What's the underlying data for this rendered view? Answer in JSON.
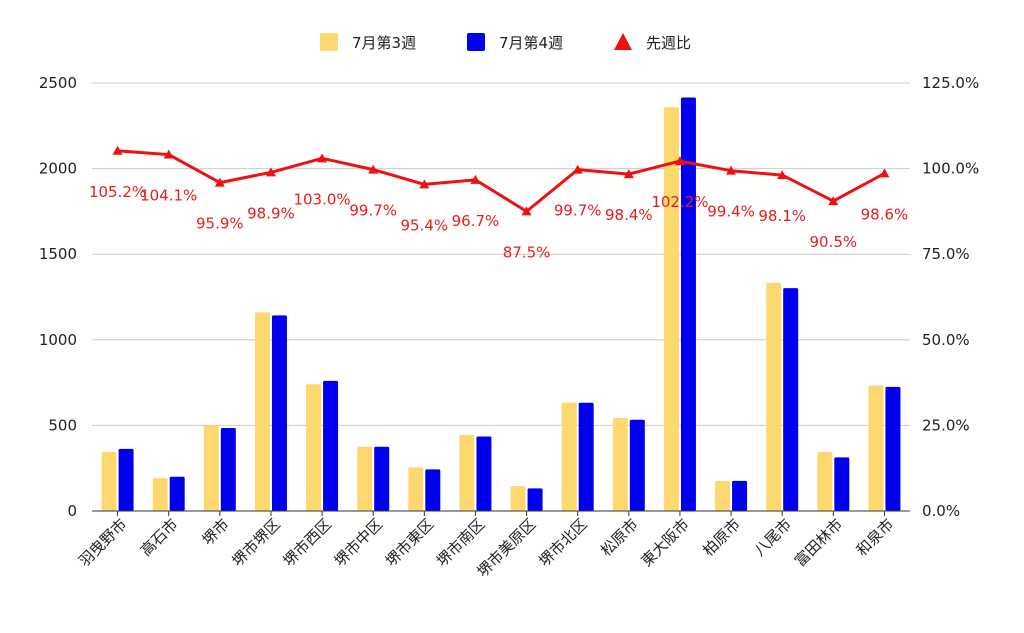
{
  "chart_data": {
    "type": "bar",
    "categories": [
      "羽曳野市",
      "高石市",
      "堺市",
      "堺市堺区",
      "堺市西区",
      "堺市中区",
      "堺市東区",
      "堺市南区",
      "堺市美原区",
      "堺市北区",
      "松原市",
      "東大阪市",
      "柏原市",
      "八尾市",
      "富田林市",
      "和泉市"
    ],
    "series": [
      {
        "name": "7月第3週",
        "type": "bar",
        "axis": "left",
        "color": "#fdd86e",
        "values": [
          345,
          192,
          500,
          1160,
          740,
          375,
          255,
          445,
          145,
          632,
          543,
          2358,
          175,
          1333,
          345,
          733
        ]
      },
      {
        "name": "7月第4週",
        "type": "bar",
        "axis": "left",
        "color": "#0000ee",
        "values": [
          363,
          200,
          485,
          1143,
          760,
          375,
          243,
          435,
          132,
          632,
          533,
          2415,
          176,
          1302,
          313,
          725
        ]
      },
      {
        "name": "先週比",
        "type": "line",
        "axis": "right",
        "color": "#ee1111",
        "values": [
          105.2,
          104.1,
          95.9,
          98.9,
          103.0,
          99.7,
          95.4,
          96.7,
          87.5,
          99.7,
          98.4,
          102.2,
          99.4,
          98.1,
          90.5,
          98.6
        ],
        "labels": [
          "105.2%",
          "104.1%",
          "95.9%",
          "98.9%",
          "103.0%",
          "99.7%",
          "95.4%",
          "96.7%",
          "87.5%",
          "99.7%",
          "98.4%",
          "102.2%",
          "99.4%",
          "98.1%",
          "90.5%",
          "98.6%"
        ]
      }
    ],
    "y_left": {
      "min": 0,
      "max": 2500,
      "ticks": [
        0,
        500,
        1000,
        1500,
        2000,
        2500
      ],
      "tick_labels": [
        "0",
        "500",
        "1000",
        "1500",
        "2000",
        "2500"
      ]
    },
    "y_right": {
      "min": 0,
      "max": 125,
      "ticks": [
        0,
        25,
        50,
        75,
        100,
        125
      ],
      "tick_labels": [
        "0.0%",
        "25.0%",
        "50.0%",
        "75.0%",
        "100.0%",
        "125.0%"
      ]
    },
    "grid": true,
    "legend_position": "top-center",
    "title": "",
    "xlabel": "",
    "ylabel": ""
  }
}
